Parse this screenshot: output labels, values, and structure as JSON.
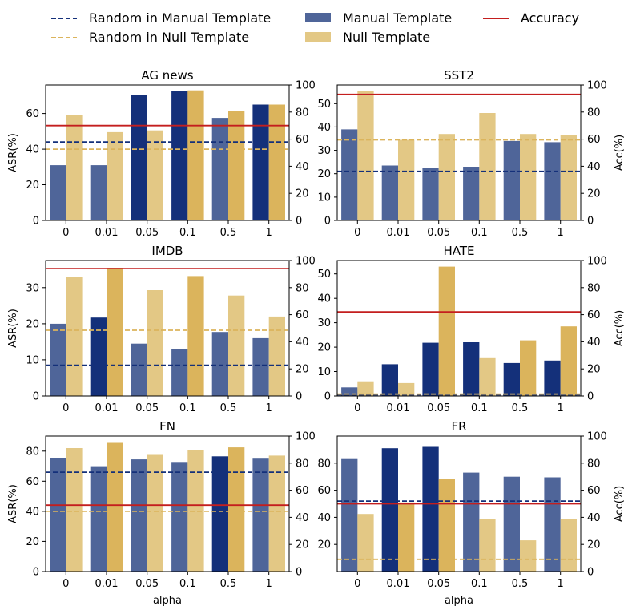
{
  "legend": {
    "placement": "top",
    "items": [
      {
        "label": "Random in Manual Template",
        "kind": "dash",
        "color": "#14307a"
      },
      {
        "label": "Random in Null Template",
        "kind": "dash",
        "color": "#dbb45c"
      },
      {
        "label": "Manual Template",
        "kind": "patch",
        "color": "#4f6599"
      },
      {
        "label": "Null Template",
        "kind": "patch",
        "color": "#e3c885"
      },
      {
        "label": "Accuracy",
        "kind": "line",
        "color": "#c41e1e"
      }
    ]
  },
  "colors": {
    "manual_light": "#4f6599",
    "manual_dark": "#14307a",
    "null_light": "#e3c885",
    "null_dark": "#dbb45c",
    "accuracy": "#c41e1e"
  },
  "chart_data": [
    {
      "type": "bar",
      "title": "AG news",
      "categories": [
        "0",
        "0.01",
        "0.05",
        "0.1",
        "0.5",
        "1"
      ],
      "xlabel": "",
      "ylabel": "ASR(%)",
      "y2label": "",
      "ylim": [
        0,
        76
      ],
      "yticks": [
        0,
        20,
        40,
        60
      ],
      "y2lim": [
        0,
        100
      ],
      "y2ticks": [
        0,
        20,
        40,
        60,
        80,
        100
      ],
      "series": [
        {
          "name": "Manual Template",
          "values": [
            31,
            31,
            70.5,
            72.5,
            57.5,
            65
          ],
          "highlight": [
            false,
            false,
            true,
            true,
            false,
            true
          ]
        },
        {
          "name": "Null Template",
          "values": [
            59,
            49.5,
            50.5,
            73,
            61.5,
            65
          ],
          "highlight": [
            false,
            false,
            false,
            true,
            true,
            true
          ]
        }
      ],
      "random_manual": 44,
      "random_null": 40,
      "accuracy": 70
    },
    {
      "type": "bar",
      "title": "SST2",
      "categories": [
        "0",
        "0.01",
        "0.05",
        "0.1",
        "0.5",
        "1"
      ],
      "xlabel": "",
      "ylabel": "",
      "y2label": "Acc(%)",
      "ylim": [
        0,
        58
      ],
      "yticks": [
        0,
        10,
        20,
        30,
        40,
        50
      ],
      "y2lim": [
        0,
        100
      ],
      "y2ticks": [
        0,
        20,
        40,
        60,
        80,
        100
      ],
      "series": [
        {
          "name": "Manual Template",
          "values": [
            39,
            23.5,
            22.5,
            23,
            34,
            33.5
          ],
          "highlight": [
            false,
            false,
            false,
            false,
            false,
            false
          ]
        },
        {
          "name": "Null Template",
          "values": [
            55.5,
            34.5,
            37,
            46,
            37,
            36.5
          ],
          "highlight": [
            false,
            false,
            false,
            false,
            false,
            false
          ]
        }
      ],
      "random_manual": 21,
      "random_null": 34.5,
      "accuracy": 93
    },
    {
      "type": "bar",
      "title": "IMDB",
      "categories": [
        "0",
        "0.01",
        "0.05",
        "0.1",
        "0.5",
        "1"
      ],
      "xlabel": "",
      "ylabel": "ASR(%)",
      "y2label": "",
      "ylim": [
        0,
        37.5
      ],
      "yticks": [
        0,
        10,
        20,
        30
      ],
      "y2lim": [
        0,
        100
      ],
      "y2ticks": [
        0,
        20,
        40,
        60,
        80,
        100
      ],
      "series": [
        {
          "name": "Manual Template",
          "values": [
            20,
            21.7,
            14.5,
            13,
            17.7,
            16
          ],
          "highlight": [
            false,
            true,
            false,
            false,
            false,
            false
          ]
        },
        {
          "name": "Null Template",
          "values": [
            33,
            35.5,
            29.3,
            33.2,
            27.8,
            22
          ],
          "highlight": [
            false,
            true,
            false,
            true,
            false,
            false
          ]
        }
      ],
      "random_manual": 8.5,
      "random_null": 18.2,
      "accuracy": 94
    },
    {
      "type": "bar",
      "title": "HATE",
      "categories": [
        "0",
        "0.01",
        "0.05",
        "0.1",
        "0.5",
        "1"
      ],
      "xlabel": "",
      "ylabel": "",
      "y2label": "Acc(%)",
      "ylim": [
        0,
        55.5
      ],
      "yticks": [
        0,
        10,
        20,
        30,
        40,
        50
      ],
      "y2lim": [
        0,
        100
      ],
      "y2ticks": [
        0,
        20,
        40,
        60,
        80,
        100
      ],
      "series": [
        {
          "name": "Manual Template",
          "values": [
            3.5,
            13,
            21.8,
            22,
            13.5,
            14.5
          ],
          "highlight": [
            false,
            true,
            true,
            true,
            true,
            true
          ]
        },
        {
          "name": "Null Template",
          "values": [
            6,
            5.3,
            53,
            15.5,
            22.8,
            28.5
          ],
          "highlight": [
            false,
            false,
            true,
            false,
            true,
            true
          ]
        }
      ],
      "random_manual": 0.5,
      "random_null": 0.8,
      "accuracy": 62
    },
    {
      "type": "bar",
      "title": "FN",
      "categories": [
        "0",
        "0.01",
        "0.05",
        "0.1",
        "0.5",
        "1"
      ],
      "xlabel": "alpha",
      "ylabel": "ASR(%)",
      "y2label": "",
      "ylim": [
        0,
        90
      ],
      "yticks": [
        0,
        20,
        40,
        60,
        80
      ],
      "y2lim": [
        0,
        100
      ],
      "y2ticks": [
        0,
        20,
        40,
        60,
        80,
        100
      ],
      "series": [
        {
          "name": "Manual Template",
          "values": [
            75.5,
            70,
            74.5,
            72.8,
            76.5,
            75
          ],
          "highlight": [
            false,
            false,
            false,
            false,
            true,
            false
          ]
        },
        {
          "name": "Null Template",
          "values": [
            82,
            85.5,
            77.5,
            80.5,
            82.5,
            77
          ],
          "highlight": [
            false,
            true,
            false,
            false,
            true,
            false
          ]
        }
      ],
      "random_manual": 66,
      "random_null": 40,
      "accuracy": 49
    },
    {
      "type": "bar",
      "title": "FR",
      "categories": [
        "0",
        "0.01",
        "0.05",
        "0.1",
        "0.5",
        "1"
      ],
      "xlabel": "alpha",
      "ylabel": "",
      "y2label": "Acc(%)",
      "ylim": [
        0,
        100
      ],
      "yticks": [
        20,
        40,
        60,
        80
      ],
      "y2lim": [
        0,
        100
      ],
      "y2ticks": [
        0,
        20,
        40,
        60,
        80,
        100
      ],
      "series": [
        {
          "name": "Manual Template",
          "values": [
            83,
            91,
            92,
            73,
            70,
            69.5
          ],
          "highlight": [
            false,
            true,
            true,
            false,
            false,
            false
          ]
        },
        {
          "name": "Null Template",
          "values": [
            42.5,
            51,
            68.5,
            38.5,
            23,
            39
          ],
          "highlight": [
            false,
            true,
            true,
            false,
            false,
            false
          ]
        }
      ],
      "random_manual": 52,
      "random_null": 9,
      "accuracy": 50
    }
  ]
}
